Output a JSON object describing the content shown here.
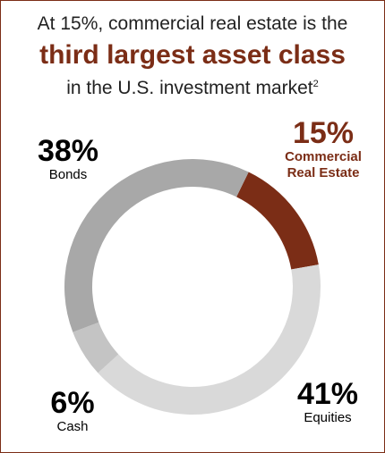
{
  "chart_data": {
    "type": "donut",
    "title": "At 15%, commercial real estate is the",
    "title_highlight": "third largest asset class",
    "subtitle": "in the U.S. investment market",
    "footnote_marker": "2",
    "categories": [
      "Commercial Real Estate",
      "Equities",
      "Cash",
      "Bonds"
    ],
    "values": [
      15,
      41,
      6,
      38
    ],
    "value_labels": [
      "15%",
      "41%",
      "6%",
      "38%"
    ],
    "colors": [
      "#7b2d16",
      "#d9d9d9",
      "#c4c4c4",
      "#a8a8a8"
    ]
  }
}
